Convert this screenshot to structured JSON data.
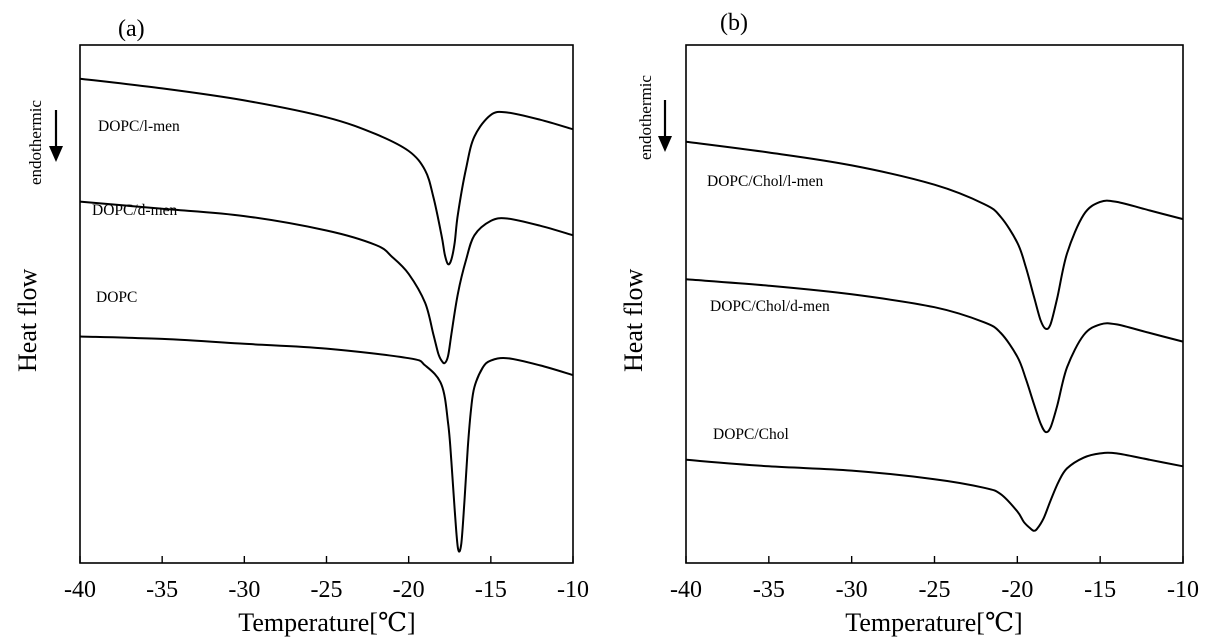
{
  "chart_data": [
    {
      "panel_label": "(a)",
      "type": "line",
      "ylabel": "Heat flow",
      "direction_label": "endothermic",
      "xlabel": "Temperature[℃]",
      "xlim": [
        -40,
        -10
      ],
      "x_ticks": [
        "-40",
        "-35",
        "-30",
        "-25",
        "-20",
        "-15",
        "-10"
      ],
      "y_axis": "arbitrary (no tick labels)",
      "grid": false,
      "series": [
        {
          "name": "DOPC/l-men",
          "x": [
            -40,
            -35,
            -30,
            -25,
            -22,
            -20,
            -19,
            -18.5,
            -18,
            -17.8,
            -17.6,
            -17.4,
            -17.2,
            -17,
            -16.5,
            -16,
            -15,
            -14,
            -12,
            -10
          ],
          "y": [
            1.51,
            1.47,
            1.42,
            1.35,
            1.28,
            1.21,
            1.13,
            1.02,
            0.86,
            0.78,
            0.74,
            0.76,
            0.83,
            0.95,
            1.14,
            1.27,
            1.36,
            1.37,
            1.34,
            1.3
          ]
        },
        {
          "name": "DOPC/d-men",
          "x": [
            -40,
            -35,
            -30,
            -25,
            -22,
            -21,
            -20,
            -19,
            -18.5,
            -18.2,
            -18,
            -17.8,
            -17.6,
            -17.4,
            -17,
            -16.5,
            -16,
            -15,
            -14,
            -12,
            -10
          ],
          "y": [
            1.0,
            0.97,
            0.94,
            0.88,
            0.82,
            0.77,
            0.7,
            0.58,
            0.45,
            0.37,
            0.34,
            0.33,
            0.36,
            0.45,
            0.62,
            0.76,
            0.86,
            0.92,
            0.93,
            0.9,
            0.86
          ]
        },
        {
          "name": "DOPC",
          "x": [
            -40,
            -35,
            -30,
            -25,
            -20,
            -19,
            -18,
            -17.6,
            -17.4,
            -17.2,
            -17,
            -16.8,
            -16.6,
            -16.4,
            -16.2,
            -16,
            -15.5,
            -15,
            -14,
            -12,
            -10
          ],
          "y": [
            0.44,
            0.43,
            0.41,
            0.39,
            0.35,
            0.32,
            0.24,
            0.08,
            -0.08,
            -0.28,
            -0.44,
            -0.42,
            -0.24,
            -0.02,
            0.14,
            0.23,
            0.31,
            0.34,
            0.35,
            0.32,
            0.28
          ]
        }
      ]
    },
    {
      "panel_label": "(b)",
      "type": "line",
      "ylabel": "Heat flow",
      "direction_label": "endothermic",
      "xlabel": "Temperature[℃]",
      "xlim": [
        -40,
        -10
      ],
      "x_ticks": [
        "-40",
        "-35",
        "-30",
        "-25",
        "-20",
        "-15",
        "-10"
      ],
      "y_axis": "arbitrary (no tick labels)",
      "grid": false,
      "series": [
        {
          "name": "DOPC/Chol/l-men",
          "x": [
            -40,
            -35,
            -30,
            -25,
            -22,
            -21,
            -20,
            -19.5,
            -19,
            -18.6,
            -18.3,
            -18,
            -17.6,
            -17,
            -16,
            -15,
            -14,
            -12,
            -10
          ],
          "y": [
            1.2,
            1.15,
            1.09,
            1.0,
            0.91,
            0.85,
            0.73,
            0.62,
            0.48,
            0.37,
            0.33,
            0.35,
            0.47,
            0.68,
            0.86,
            0.92,
            0.92,
            0.88,
            0.84
          ]
        },
        {
          "name": "DOPC/Chol/d-men",
          "x": [
            -40,
            -35,
            -30,
            -25,
            -22,
            -21,
            -20,
            -19.5,
            -19,
            -18.6,
            -18.3,
            -18,
            -17.6,
            -17,
            -16,
            -15,
            -14,
            -12,
            -10
          ],
          "y": [
            0.56,
            0.53,
            0.49,
            0.43,
            0.36,
            0.31,
            0.2,
            0.1,
            -0.02,
            -0.11,
            -0.15,
            -0.13,
            -0.03,
            0.15,
            0.3,
            0.35,
            0.35,
            0.31,
            0.27
          ]
        },
        {
          "name": "DOPC/Chol",
          "x": [
            -40,
            -35,
            -30,
            -25,
            -22,
            -21,
            -20,
            -19.6,
            -19.2,
            -19,
            -18.8,
            -18.4,
            -18,
            -17.5,
            -17,
            -16,
            -15,
            -14,
            -12,
            -10
          ],
          "y": [
            -0.28,
            -0.31,
            -0.33,
            -0.37,
            -0.41,
            -0.44,
            -0.52,
            -0.57,
            -0.6,
            -0.61,
            -0.6,
            -0.55,
            -0.47,
            -0.38,
            -0.32,
            -0.27,
            -0.25,
            -0.25,
            -0.28,
            -0.31
          ]
        }
      ]
    }
  ]
}
